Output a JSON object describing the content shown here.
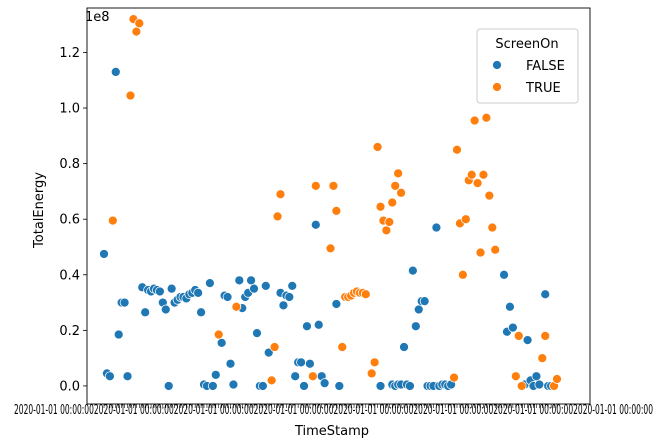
{
  "chart_data": {
    "type": "scatter",
    "title": "",
    "xlabel": "TimeStamp",
    "ylabel": "TotalEnergy",
    "y_offset_label": "1e8",
    "ylim": [
      -0.065,
      1.36
    ],
    "yticks": [
      "0.0",
      "0.2",
      "0.4",
      "0.6",
      "0.8",
      "1.0",
      "1.2"
    ],
    "ytick_values": [
      0.0,
      0.2,
      0.4,
      0.6,
      0.8,
      1.0,
      1.2
    ],
    "y_unit_multiplier": 100000000,
    "x_tick_labels_note": "x tick labels are dense overlapping timestamps (unreadable)",
    "x_category_count": 155,
    "legend": {
      "title": "ScreenOn",
      "placement": "upper right",
      "entries": [
        {
          "label": "FALSE",
          "color": "#1f77b4"
        },
        {
          "label": "TRUE",
          "color": "#ff7f0e"
        }
      ]
    },
    "series": [
      {
        "name": "FALSE",
        "color": "#1f77b4",
        "points": [
          [
            1,
            0.475
          ],
          [
            2,
            0.045
          ],
          [
            3,
            0.035
          ],
          [
            5,
            1.13
          ],
          [
            6,
            0.185
          ],
          [
            7,
            0.3
          ],
          [
            8,
            0.3
          ],
          [
            9,
            0.035
          ],
          [
            14,
            0.355
          ],
          [
            15,
            0.265
          ],
          [
            16,
            0.345
          ],
          [
            17,
            0.34
          ],
          [
            18,
            0.35
          ],
          [
            19,
            0.345
          ],
          [
            20,
            0.34
          ],
          [
            21,
            0.3
          ],
          [
            22,
            0.275
          ],
          [
            23,
            0.0
          ],
          [
            24,
            0.35
          ],
          [
            25,
            0.3
          ],
          [
            26,
            0.31
          ],
          [
            27,
            0.32
          ],
          [
            28,
            0.32
          ],
          [
            29,
            0.315
          ],
          [
            30,
            0.33
          ],
          [
            31,
            0.335
          ],
          [
            32,
            0.345
          ],
          [
            33,
            0.335
          ],
          [
            34,
            0.265
          ],
          [
            35,
            0.005
          ],
          [
            36,
            0.0
          ],
          [
            37,
            0.37
          ],
          [
            38,
            0.0
          ],
          [
            39,
            0.04
          ],
          [
            41,
            0.155
          ],
          [
            42,
            0.325
          ],
          [
            43,
            0.32
          ],
          [
            44,
            0.08
          ],
          [
            45,
            0.005
          ],
          [
            47,
            0.38
          ],
          [
            48,
            0.28
          ],
          [
            49,
            0.32
          ],
          [
            50,
            0.335
          ],
          [
            51,
            0.38
          ],
          [
            52,
            0.35
          ],
          [
            53,
            0.19
          ],
          [
            54,
            0.0
          ],
          [
            55,
            0.0
          ],
          [
            56,
            0.36
          ],
          [
            57,
            0.12
          ],
          [
            61,
            0.335
          ],
          [
            62,
            0.29
          ],
          [
            63,
            0.325
          ],
          [
            64,
            0.32
          ],
          [
            65,
            0.36
          ],
          [
            66,
            0.035
          ],
          [
            67,
            0.085
          ],
          [
            68,
            0.085
          ],
          [
            69,
            0.0
          ],
          [
            70,
            0.215
          ],
          [
            71,
            0.08
          ],
          [
            73,
            0.58
          ],
          [
            74,
            0.22
          ],
          [
            75,
            0.035
          ],
          [
            76,
            0.01
          ],
          [
            80,
            0.295
          ],
          [
            81,
            0.0
          ],
          [
            95,
            0.0
          ],
          [
            99,
            0.005
          ],
          [
            100,
            0.0
          ],
          [
            101,
            0.005
          ],
          [
            102,
            0.005
          ],
          [
            103,
            0.14
          ],
          [
            104,
            0.005
          ],
          [
            105,
            0.0
          ],
          [
            106,
            0.415
          ],
          [
            107,
            0.215
          ],
          [
            108,
            0.275
          ],
          [
            109,
            0.305
          ],
          [
            110,
            0.305
          ],
          [
            111,
            0.0
          ],
          [
            112,
            0.0
          ],
          [
            113,
            0.0
          ],
          [
            114,
            0.57
          ],
          [
            115,
            0.0
          ],
          [
            116,
            0.005
          ],
          [
            117,
            0.005
          ],
          [
            118,
            0.0
          ],
          [
            119,
            0.005
          ],
          [
            137,
            0.4
          ],
          [
            138,
            0.195
          ],
          [
            139,
            0.285
          ],
          [
            140,
            0.21
          ],
          [
            143,
            0.0
          ],
          [
            144,
            0.005
          ],
          [
            145,
            0.165
          ],
          [
            146,
            0.02
          ],
          [
            147,
            0.0
          ],
          [
            148,
            0.035
          ],
          [
            149,
            0.005
          ],
          [
            151,
            0.33
          ],
          [
            152,
            0.0
          ],
          [
            153,
            0.0
          ]
        ]
      },
      {
        "name": "TRUE",
        "color": "#ff7f0e",
        "points": [
          [
            4,
            0.595
          ],
          [
            10,
            1.045
          ],
          [
            11,
            1.32
          ],
          [
            12,
            1.275
          ],
          [
            13,
            1.305
          ],
          [
            40,
            0.185
          ],
          [
            46,
            0.285
          ],
          [
            58,
            0.02
          ],
          [
            59,
            0.14
          ],
          [
            60,
            0.61
          ],
          [
            61,
            0.69
          ],
          [
            72,
            0.035
          ],
          [
            73,
            0.72
          ],
          [
            78,
            0.495
          ],
          [
            79,
            0.72
          ],
          [
            80,
            0.63
          ],
          [
            82,
            0.14
          ],
          [
            83,
            0.32
          ],
          [
            84,
            0.32
          ],
          [
            85,
            0.325
          ],
          [
            86,
            0.335
          ],
          [
            87,
            0.34
          ],
          [
            88,
            0.335
          ],
          [
            89,
            0.335
          ],
          [
            90,
            0.33
          ],
          [
            92,
            0.045
          ],
          [
            93,
            0.085
          ],
          [
            94,
            0.86
          ],
          [
            95,
            0.645
          ],
          [
            96,
            0.595
          ],
          [
            97,
            0.56
          ],
          [
            98,
            0.59
          ],
          [
            99,
            0.66
          ],
          [
            100,
            0.72
          ],
          [
            101,
            0.765
          ],
          [
            102,
            0.695
          ],
          [
            120,
            0.03
          ],
          [
            121,
            0.85
          ],
          [
            122,
            0.585
          ],
          [
            123,
            0.4
          ],
          [
            124,
            0.6
          ],
          [
            125,
            0.74
          ],
          [
            126,
            0.76
          ],
          [
            127,
            0.955
          ],
          [
            128,
            0.73
          ],
          [
            129,
            0.48
          ],
          [
            130,
            0.76
          ],
          [
            131,
            0.965
          ],
          [
            132,
            0.685
          ],
          [
            133,
            0.57
          ],
          [
            134,
            0.49
          ],
          [
            141,
            0.035
          ],
          [
            142,
            0.18
          ],
          [
            143,
            0.0
          ],
          [
            150,
            0.1
          ],
          [
            151,
            0.18
          ],
          [
            154,
            0.0
          ],
          [
            155,
            0.025
          ]
        ]
      }
    ]
  }
}
